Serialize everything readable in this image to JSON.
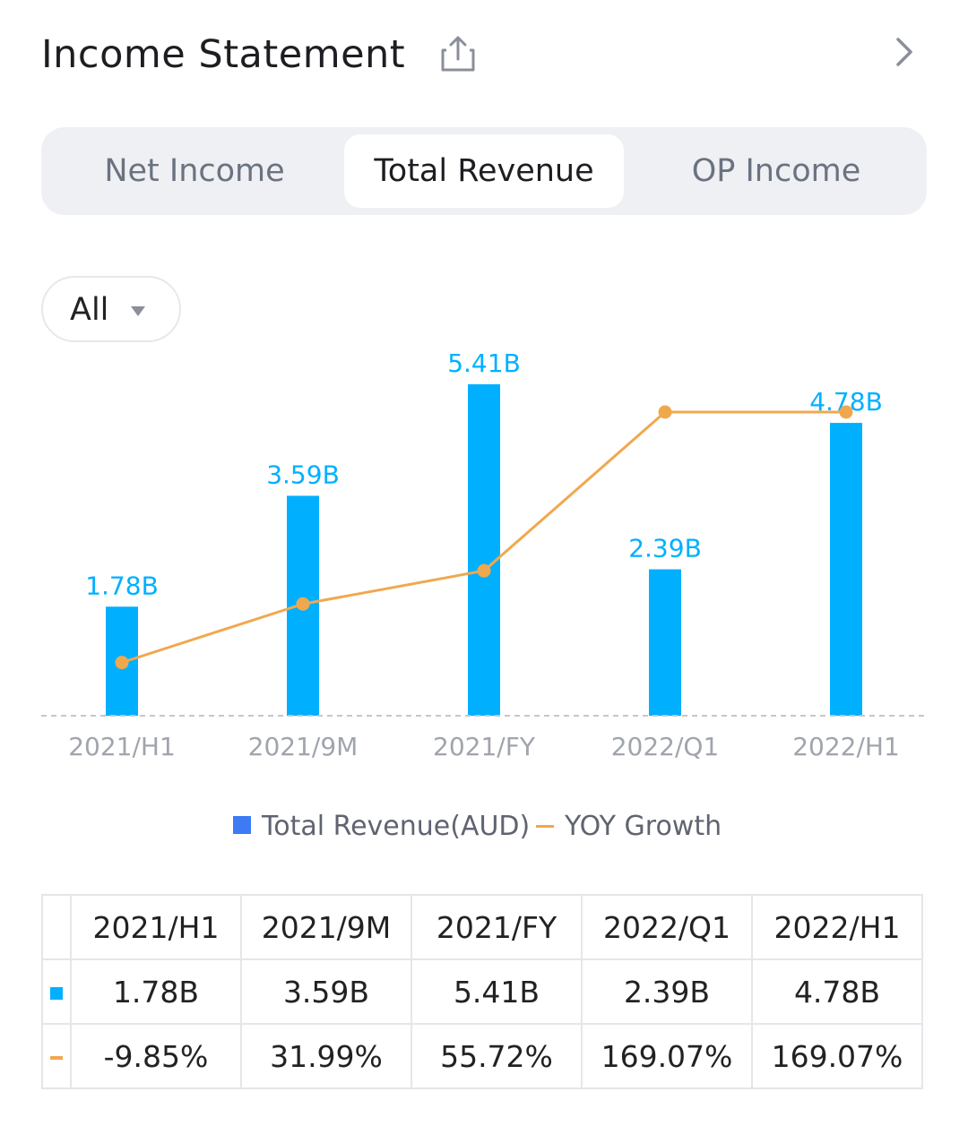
{
  "header": {
    "title": "Income Statement",
    "share_icon": "share-icon",
    "next_icon": "chevron-right-icon"
  },
  "tabs": [
    {
      "label": "Net Income",
      "active": false
    },
    {
      "label": "Total Revenue",
      "active": true
    },
    {
      "label": "OP Income",
      "active": false
    }
  ],
  "filter": {
    "selected": "All",
    "icon": "caret-down-icon"
  },
  "colors": {
    "bar": "#00b0ff",
    "line": "#f0a84e",
    "legend_bar": "#3d7bf4",
    "positive": "#2db47d",
    "negative": "#e0504f"
  },
  "chart_data": {
    "type": "bar",
    "categories": [
      "2021/H1",
      "2021/9M",
      "2021/FY",
      "2022/Q1",
      "2022/H1"
    ],
    "series": [
      {
        "name": "Total Revenue(AUD)",
        "type": "bar",
        "values": [
          1.78,
          3.59,
          5.41,
          2.39,
          4.78
        ],
        "labels": [
          "1.78B",
          "3.59B",
          "5.41B",
          "2.39B",
          "4.78B"
        ],
        "unit": "B"
      },
      {
        "name": "YOY Growth",
        "type": "line",
        "values": [
          -9.85,
          31.99,
          55.72,
          169.07,
          169.07
        ],
        "unit": "%"
      }
    ],
    "bar_ylim": [
      0,
      5.41
    ],
    "line_ylim": [
      -28,
      169.07
    ],
    "baseline": "dashed",
    "legend_position": "bottom"
  },
  "legend": {
    "bar_label": "Total Revenue(AUD)",
    "line_label": "YOY Growth"
  },
  "table": {
    "headers": [
      "2021/H1",
      "2021/9M",
      "2021/FY",
      "2022/Q1",
      "2022/H1"
    ],
    "revenue": [
      "1.78B",
      "3.59B",
      "5.41B",
      "2.39B",
      "4.78B"
    ],
    "growth": [
      "-9.85%",
      "31.99%",
      "55.72%",
      "169.07%",
      "169.07%"
    ]
  }
}
